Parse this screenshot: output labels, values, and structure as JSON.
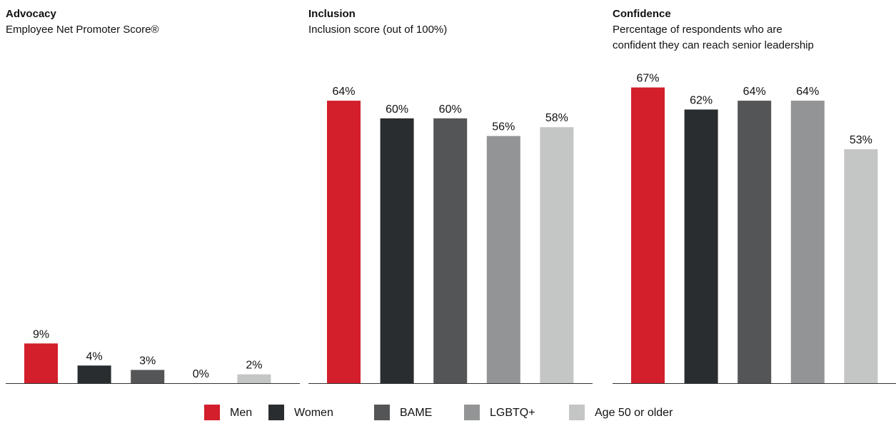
{
  "chart_data": [
    {
      "type": "bar",
      "title": "Advocacy",
      "subtitle": [
        "Employee Net Promoter Score®"
      ],
      "values": [
        9,
        4,
        3,
        0,
        2
      ],
      "value_labels": [
        "9%",
        "4%",
        "3%",
        "0%",
        "2%"
      ],
      "ylim": [
        0,
        70
      ]
    },
    {
      "type": "bar",
      "title": "Inclusion",
      "subtitle": [
        "Inclusion score (out of 100%)"
      ],
      "values": [
        64,
        60,
        60,
        56,
        58
      ],
      "value_labels": [
        "64%",
        "60%",
        "60%",
        "56%",
        "58%"
      ],
      "ylim": [
        0,
        70
      ]
    },
    {
      "type": "bar",
      "title": "Confidence",
      "subtitle": [
        "Percentage of respondents who are",
        "confident they can reach senior leadership"
      ],
      "values": [
        67,
        62,
        64,
        64,
        53
      ],
      "value_labels": [
        "67%",
        "62%",
        "64%",
        "64%",
        "53%"
      ],
      "ylim": [
        0,
        70
      ]
    }
  ],
  "legend": [
    {
      "name": "Men",
      "color": "#d21f2b"
    },
    {
      "name": "Women",
      "color": "#2a2d30"
    },
    {
      "name": "BAME",
      "color": "#545557"
    },
    {
      "name": "LGBTQ+",
      "color": "#929495"
    },
    {
      "name": "Age 50 or older",
      "color": "#c4c5c5"
    }
  ]
}
